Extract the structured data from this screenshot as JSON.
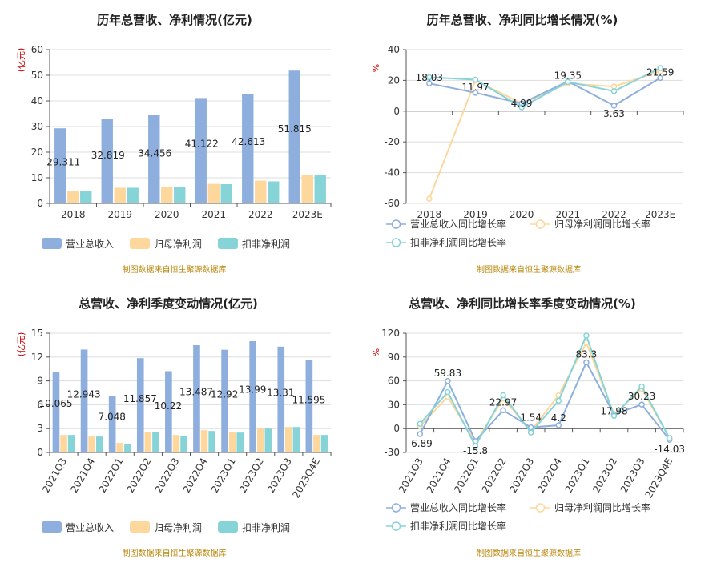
{
  "source_note": "制图数据来自恒生聚源数据库",
  "colors": {
    "revenue": "#8eaede",
    "net_profit": "#fdd79b",
    "deducted_profit": "#86d4d8",
    "grid": "#dddddd",
    "axis": "#555555",
    "unit": "#cc0000",
    "source": "#b8860b"
  },
  "chart_data": [
    {
      "id": "annual-revenue-profit",
      "type": "bar",
      "title": "历年总营收、净利情况(亿元)",
      "ylabel": "(亿元)",
      "categories": [
        "2018",
        "2019",
        "2020",
        "2021",
        "2022",
        "2023E"
      ],
      "ylim": [
        0,
        60
      ],
      "yticks": [
        0,
        10,
        20,
        30,
        40,
        50,
        60
      ],
      "series": [
        {
          "name": "营业总收入",
          "values": [
            29.311,
            32.819,
            34.456,
            41.122,
            42.613,
            51.815
          ],
          "labels": [
            "29.311",
            "32.819",
            "34.456",
            "41.122",
            "42.613",
            "51.815"
          ]
        },
        {
          "name": "归母净利润",
          "values": [
            5.0,
            6.1,
            6.4,
            7.6,
            8.9,
            11.0
          ]
        },
        {
          "name": "扣非净利润",
          "values": [
            5.0,
            6.1,
            6.3,
            7.5,
            8.6,
            11.0
          ]
        }
      ],
      "legend": "bottom",
      "grid": true
    },
    {
      "id": "annual-growth",
      "type": "line",
      "title": "历年总营收、净利同比增长情况(%)",
      "ylabel": "%",
      "categories": [
        "2018",
        "2019",
        "2020",
        "2021",
        "2022",
        "2023E"
      ],
      "ylim": [
        -60,
        40
      ],
      "yticks": [
        -60,
        -40,
        -20,
        0,
        20,
        40
      ],
      "series": [
        {
          "name": "营业总收入同比增长率",
          "values": [
            18.03,
            11.97,
            4.99,
            19.35,
            3.63,
            21.59
          ],
          "labels": [
            "18.03",
            "11.97",
            "4.99",
            "19.35",
            "3.63",
            "21.59"
          ]
        },
        {
          "name": "归母净利润同比增长率",
          "values": [
            -57.0,
            20.0,
            5.0,
            18.0,
            16.0,
            26.0
          ]
        },
        {
          "name": "扣非净利润同比增长率",
          "values": [
            22.0,
            20.5,
            2.5,
            19.0,
            13.0,
            28.0
          ]
        }
      ],
      "legend": "bottom",
      "grid": true
    },
    {
      "id": "quarterly-revenue-profit",
      "type": "bar",
      "title": "总营收、净利季度变动情况(亿元)",
      "ylabel": "(亿元)",
      "categories": [
        "2021Q3",
        "2021Q4",
        "2022Q1",
        "2022Q2",
        "2022Q3",
        "2022Q4",
        "2023Q1",
        "2023Q2",
        "2023Q3",
        "2023Q4E"
      ],
      "ylim": [
        0,
        15
      ],
      "yticks": [
        0,
        3,
        6,
        9,
        12,
        15
      ],
      "series": [
        {
          "name": "营业总收入",
          "values": [
            10.065,
            12.943,
            7.048,
            11.857,
            10.22,
            13.487,
            12.92,
            13.99,
            13.31,
            11.595
          ],
          "labels": [
            "10.065",
            "12.943",
            "7.048",
            "11.857",
            "10.22",
            "13.487",
            "12.92",
            "13.99",
            "13.31",
            "11.595"
          ]
        },
        {
          "name": "归母净利润",
          "values": [
            2.2,
            2.0,
            1.2,
            2.6,
            2.2,
            2.8,
            2.6,
            3.0,
            3.2,
            2.2
          ]
        },
        {
          "name": "扣非净利润",
          "values": [
            2.2,
            2.0,
            1.1,
            2.6,
            2.1,
            2.7,
            2.5,
            3.0,
            3.2,
            2.2
          ]
        }
      ],
      "legend": "bottom",
      "grid": true
    },
    {
      "id": "quarterly-growth",
      "type": "line",
      "title": "总营收、净利同比增长率季度变动情况(%)",
      "ylabel": "%",
      "categories": [
        "2021Q3",
        "2021Q4",
        "2022Q1",
        "2022Q2",
        "2022Q3",
        "2022Q4",
        "2023Q1",
        "2023Q2",
        "2023Q3",
        "2023Q4E"
      ],
      "ylim": [
        -30,
        120
      ],
      "yticks": [
        -30,
        0,
        30,
        60,
        90,
        120
      ],
      "series": [
        {
          "name": "营业总收入同比增长率",
          "values": [
            -6.89,
            59.83,
            -15.8,
            22.97,
            1.54,
            4.2,
            83.3,
            17.98,
            30.23,
            -14.03
          ],
          "labels": [
            "-6.89",
            "59.83",
            "-15.8",
            "22.97",
            "1.54",
            "4.2",
            "83.3",
            "17.98",
            "30.23",
            "-14.03"
          ]
        },
        {
          "name": "归母净利润同比增长率",
          "values": [
            3.0,
            40.0,
            -18.0,
            38.0,
            -3.0,
            42.0,
            108.0,
            18.0,
            50.0,
            -12.0
          ]
        },
        {
          "name": "扣非净利润同比增长率",
          "values": [
            6.0,
            46.0,
            -22.0,
            42.0,
            -5.0,
            35.0,
            117.0,
            16.0,
            53.0,
            -12.0
          ]
        }
      ],
      "legend": "bottom",
      "grid": true
    }
  ]
}
